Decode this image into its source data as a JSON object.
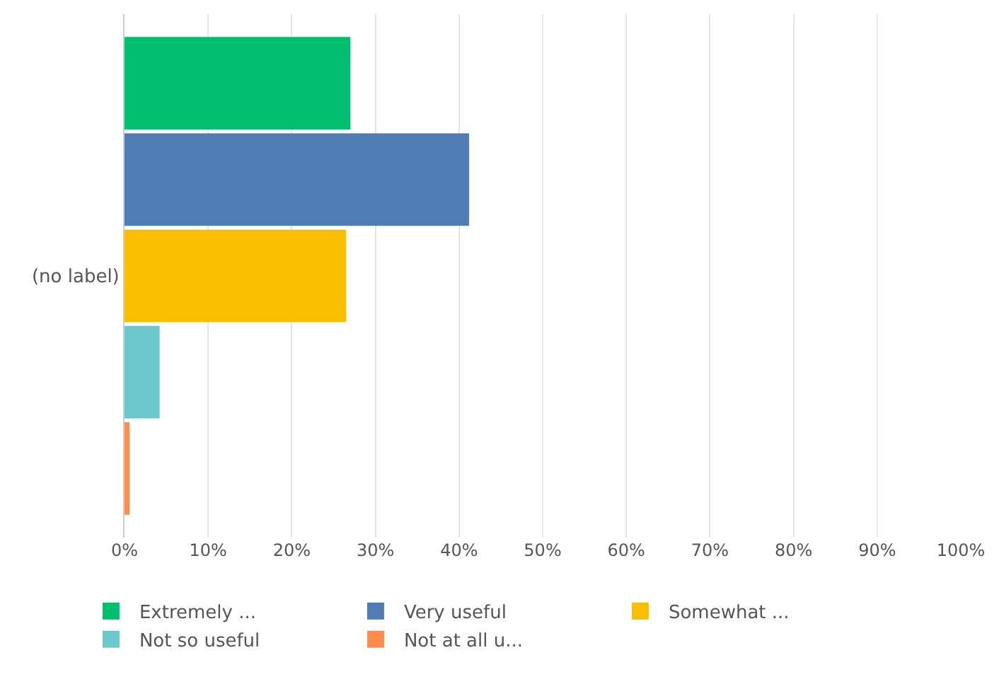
{
  "chart_data": {
    "type": "bar",
    "orientation": "horizontal",
    "categories": [
      "(no label)"
    ],
    "series": [
      {
        "name": "Extremely ...",
        "color": "#00bf6f",
        "values": [
          27.0
        ]
      },
      {
        "name": "Very useful",
        "color": "#507cb6",
        "values": [
          41.2
        ]
      },
      {
        "name": "Somewhat ...",
        "color": "#f9be00",
        "values": [
          26.5
        ]
      },
      {
        "name": "Not so useful",
        "color": "#6bc8cd",
        "values": [
          4.2
        ]
      },
      {
        "name": "Not at all u...",
        "color": "#ff8b4f",
        "values": [
          0.6
        ]
      }
    ],
    "xlim": [
      0,
      100
    ],
    "xticks": [
      {
        "value": 0,
        "label": "0%"
      },
      {
        "value": 10,
        "label": "10%"
      },
      {
        "value": 20,
        "label": "20%"
      },
      {
        "value": 30,
        "label": "30%"
      },
      {
        "value": 40,
        "label": "40%"
      },
      {
        "value": 50,
        "label": "50%"
      },
      {
        "value": 60,
        "label": "60%"
      },
      {
        "value": 70,
        "label": "70%"
      },
      {
        "value": 80,
        "label": "80%"
      },
      {
        "value": 90,
        "label": "90%"
      },
      {
        "value": 100,
        "label": "100%"
      }
    ],
    "grid": "x",
    "legend": "bottom"
  }
}
